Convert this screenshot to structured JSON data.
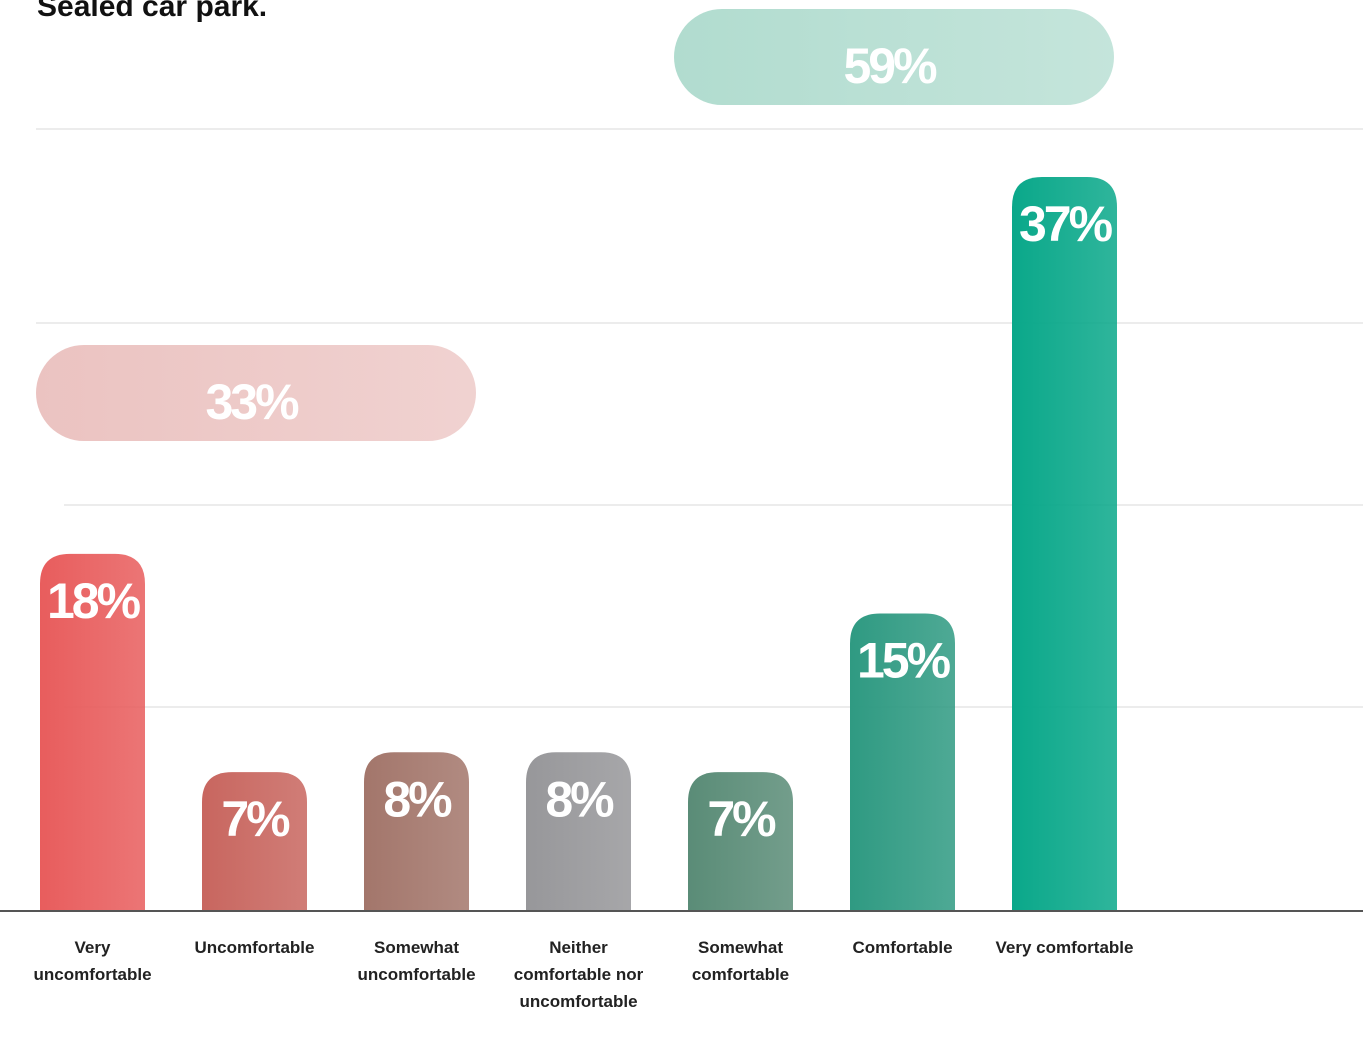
{
  "chart_data": {
    "type": "bar",
    "title": "Sealed car park.",
    "categories": [
      "Very uncomfortable",
      "Uncomfortable",
      "Somewhat uncomfortable",
      "Neither comfortable nor uncomfortable",
      "Somewhat comfortable",
      "Comfortable",
      "Very comfortable"
    ],
    "values": [
      18,
      7,
      8,
      8,
      7,
      15,
      37
    ],
    "value_labels": [
      "18%",
      "7%",
      "8%",
      "8%",
      "7%",
      "15%",
      "37%"
    ],
    "colors": [
      "#e85d5d",
      "#c8665f",
      "#a3766b",
      "#97979a",
      "#5a8c77",
      "#2f9a82",
      "#0aa88a"
    ],
    "ylim": [
      0,
      40
    ],
    "summaries": [
      {
        "value": 33,
        "label": "33%",
        "color": "#ebc3c1"
      },
      {
        "value": 59,
        "label": "59%",
        "color": "#b1dccf"
      }
    ]
  }
}
